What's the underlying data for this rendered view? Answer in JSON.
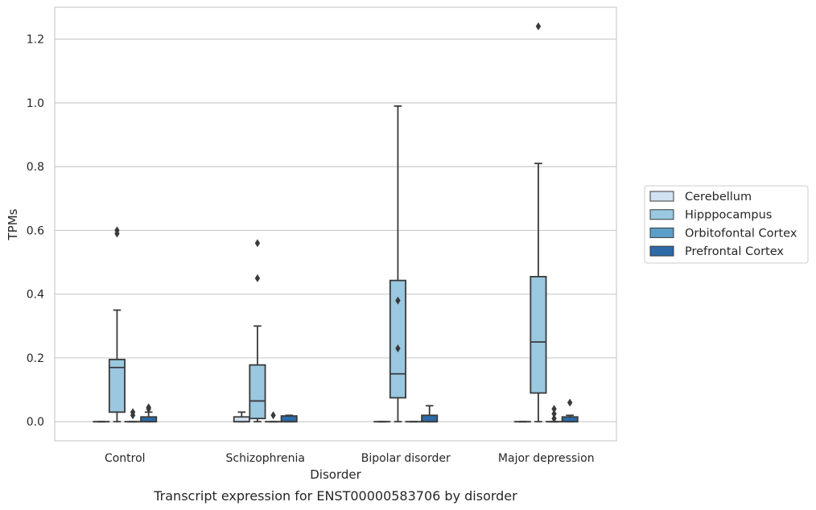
{
  "chart_data": {
    "type": "box",
    "caption": "Transcript expression for ENST00000583706 by disorder",
    "xlabel": "Disorder",
    "ylabel": "TPMs",
    "ylim": [
      -0.06,
      1.3
    ],
    "yticks": [
      0.0,
      0.2,
      0.4,
      0.6,
      0.8,
      1.0,
      1.2
    ],
    "ytick_labels": [
      "0.0",
      "0.2",
      "0.4",
      "0.6",
      "0.8",
      "1.0",
      "1.2"
    ],
    "grid": true,
    "legend_position": "right",
    "categories": [
      "Control",
      "Schizophrenia",
      "Bipolar disorder",
      "Major depression"
    ],
    "series": [
      {
        "name": "Cerebellum",
        "color": "#d1e2f2",
        "boxes": [
          {
            "q1": 0.0,
            "median": 0.0,
            "q3": 0.0,
            "whisker_low": 0.0,
            "whisker_high": 0.0,
            "outliers": []
          },
          {
            "q1": 0.0,
            "median": 0.0,
            "q3": 0.015,
            "whisker_low": 0.0,
            "whisker_high": 0.03,
            "outliers": []
          },
          {
            "q1": 0.0,
            "median": 0.0,
            "q3": 0.0,
            "whisker_low": 0.0,
            "whisker_high": 0.0,
            "outliers": []
          },
          {
            "q1": 0.0,
            "median": 0.0,
            "q3": 0.0,
            "whisker_low": 0.0,
            "whisker_high": 0.0,
            "outliers": []
          }
        ]
      },
      {
        "name": "Hipppocampus",
        "color": "#9ac8e0",
        "boxes": [
          {
            "q1": 0.03,
            "median": 0.17,
            "q3": 0.195,
            "whisker_low": 0.0,
            "whisker_high": 0.35,
            "outliers": [
              0.59,
              0.6
            ]
          },
          {
            "q1": 0.01,
            "median": 0.065,
            "q3": 0.178,
            "whisker_low": 0.0,
            "whisker_high": 0.3,
            "outliers": [
              0.45,
              0.56
            ]
          },
          {
            "q1": 0.075,
            "median": 0.15,
            "q3": 0.443,
            "whisker_low": 0.0,
            "whisker_high": 0.99,
            "outliers": [
              0.23,
              0.38
            ]
          },
          {
            "q1": 0.09,
            "median": 0.25,
            "q3": 0.455,
            "whisker_low": 0.0,
            "whisker_high": 0.81,
            "outliers": [
              1.24
            ]
          }
        ]
      },
      {
        "name": "Orbitofontal Cortex",
        "color": "#5a9ec9",
        "boxes": [
          {
            "q1": 0.0,
            "median": 0.0,
            "q3": 0.0,
            "whisker_low": 0.0,
            "whisker_high": 0.0,
            "outliers": [
              0.02,
              0.03
            ]
          },
          {
            "q1": 0.0,
            "median": 0.0,
            "q3": 0.0,
            "whisker_low": 0.0,
            "whisker_high": 0.0,
            "outliers": [
              0.02
            ]
          },
          {
            "q1": 0.0,
            "median": 0.0,
            "q3": 0.0,
            "whisker_low": 0.0,
            "whisker_high": 0.0,
            "outliers": []
          },
          {
            "q1": 0.0,
            "median": 0.0,
            "q3": 0.0,
            "whisker_low": 0.0,
            "whisker_high": 0.0,
            "outliers": [
              0.01,
              0.025,
              0.04
            ]
          }
        ]
      },
      {
        "name": "Prefrontal Cortex",
        "color": "#2c6aa8",
        "boxes": [
          {
            "q1": 0.0,
            "median": 0.0,
            "q3": 0.015,
            "whisker_low": 0.0,
            "whisker_high": 0.03,
            "outliers": [
              0.04,
              0.045
            ]
          },
          {
            "q1": 0.0,
            "median": 0.0,
            "q3": 0.018,
            "whisker_low": 0.0,
            "whisker_high": 0.02,
            "outliers": []
          },
          {
            "q1": 0.0,
            "median": 0.0,
            "q3": 0.02,
            "whisker_low": 0.0,
            "whisker_high": 0.05,
            "outliers": []
          },
          {
            "q1": 0.0,
            "median": 0.0,
            "q3": 0.015,
            "whisker_low": 0.0,
            "whisker_high": 0.02,
            "outliers": [
              0.06
            ]
          }
        ]
      }
    ]
  }
}
